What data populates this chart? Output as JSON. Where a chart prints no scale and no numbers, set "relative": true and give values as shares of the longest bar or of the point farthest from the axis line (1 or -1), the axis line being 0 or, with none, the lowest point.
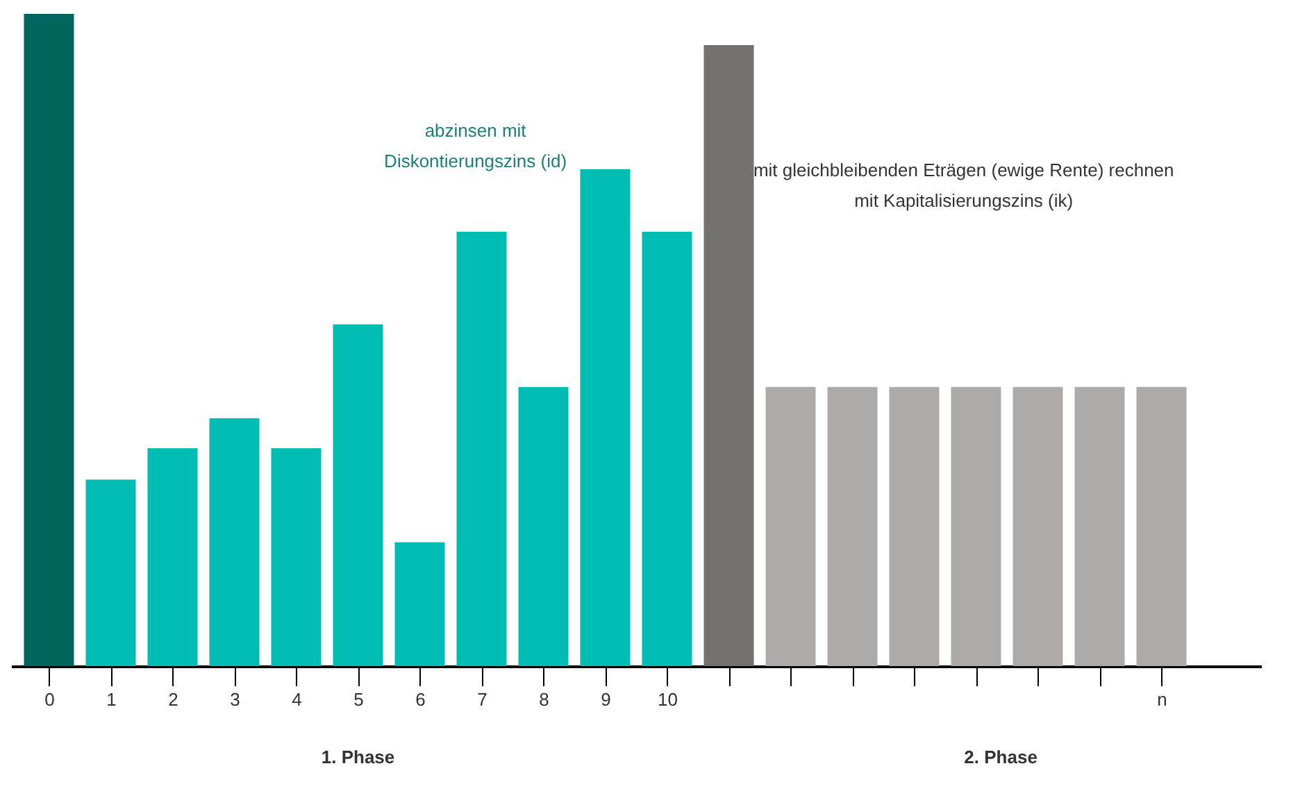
{
  "chart_data": {
    "type": "bar",
    "relative": true,
    "categories": [
      "0",
      "1",
      "2",
      "3",
      "4",
      "5",
      "6",
      "7",
      "8",
      "9",
      "10",
      null,
      null,
      null,
      null,
      null,
      null,
      null,
      "n"
    ],
    "values": [
      1,
      0.286,
      0.334,
      0.38,
      0.334,
      0.524,
      0.19,
      0.666,
      0.428,
      0.762,
      0.666,
      0.952,
      0.428,
      0.428,
      0.428,
      0.428,
      0.428,
      0.428,
      0.428
    ],
    "colors": [
      "#00665e",
      "#00bdb3",
      "#00bdb3",
      "#00bdb3",
      "#00bdb3",
      "#00bdb3",
      "#00bdb3",
      "#00bdb3",
      "#00bdb3",
      "#00bdb3",
      "#00bdb3",
      "#767171",
      "#aeaaaa",
      "#aeaaaa",
      "#aeaaaa",
      "#aeaaaa",
      "#aeaaaa",
      "#aeaaaa",
      "#aeaaaa"
    ],
    "annotations": [
      "abzinsen mit\nDiskontierungszins (id)",
      "mit gleichbleibenden Eträgen (ewige Rente) rechnen\nmit Kapitalisierungszins (ik)",
      "1. Phase",
      "2. Phase"
    ],
    "grid": false
  }
}
